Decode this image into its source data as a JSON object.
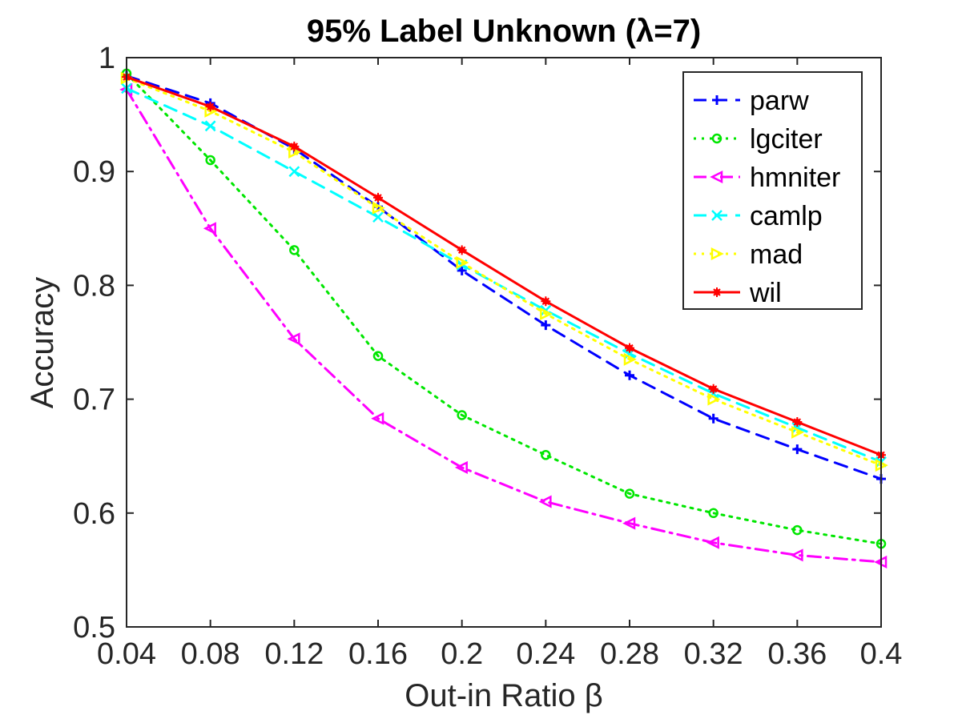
{
  "chart_data": {
    "type": "line",
    "title": "95% Label Unknown (λ=7)",
    "xlabel": "Out-in Ratio β",
    "ylabel": "Accuracy",
    "x": [
      0.04,
      0.08,
      0.12,
      0.16,
      0.2,
      0.24,
      0.28,
      0.32,
      0.36,
      0.4
    ],
    "x_tick_labels": [
      "0.04",
      "0.08",
      "0.12",
      "0.16",
      "0.2",
      "0.24",
      "0.28",
      "0.32",
      "0.36",
      "0.4"
    ],
    "xlim": [
      0.04,
      0.4
    ],
    "ylim": [
      0.5,
      1.0
    ],
    "y_ticks": [
      0.5,
      0.6,
      0.7,
      0.8,
      0.9,
      1.0
    ],
    "y_tick_labels": [
      "0.5",
      "0.6",
      "0.7",
      "0.8",
      "0.9",
      "1"
    ],
    "grid": false,
    "legend_position": "top-right",
    "series": [
      {
        "name": "parw",
        "values": [
          0.984,
          0.96,
          0.92,
          0.869,
          0.813,
          0.765,
          0.721,
          0.683,
          0.656,
          0.63
        ],
        "color": "#0000ff",
        "line_style": "dashed",
        "marker": "plus"
      },
      {
        "name": "lgciter",
        "values": [
          0.986,
          0.91,
          0.831,
          0.738,
          0.686,
          0.651,
          0.617,
          0.6,
          0.585,
          0.573
        ],
        "color": "#00e600",
        "line_style": "dotted",
        "marker": "circle"
      },
      {
        "name": "hmniter",
        "values": [
          0.972,
          0.85,
          0.753,
          0.683,
          0.64,
          0.61,
          0.591,
          0.574,
          0.563,
          0.557
        ],
        "color": "#ff00ff",
        "line_style": "dashdot",
        "marker": "triangle-left"
      },
      {
        "name": "camlp",
        "values": [
          0.973,
          0.94,
          0.9,
          0.86,
          0.818,
          0.778,
          0.74,
          0.705,
          0.675,
          0.645
        ],
        "color": "#00ffff",
        "line_style": "dashed",
        "marker": "x"
      },
      {
        "name": "mad",
        "values": [
          0.982,
          0.953,
          0.917,
          0.868,
          0.82,
          0.775,
          0.735,
          0.7,
          0.671,
          0.642
        ],
        "color": "#ffff00",
        "line_style": "dotted",
        "marker": "triangle-right"
      },
      {
        "name": "wil",
        "values": [
          0.983,
          0.957,
          0.922,
          0.877,
          0.831,
          0.786,
          0.745,
          0.709,
          0.68,
          0.651
        ],
        "color": "#ff0000",
        "line_style": "solid",
        "marker": "asterisk"
      }
    ]
  }
}
